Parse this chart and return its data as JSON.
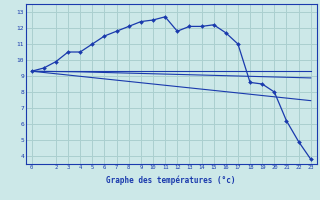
{
  "xlabel": "Graphe des températures (°c)",
  "bg_color": "#cce8e8",
  "line_color": "#1a3aad",
  "grid_color": "#aacfcf",
  "hours": [
    0,
    1,
    2,
    3,
    4,
    5,
    6,
    7,
    8,
    9,
    10,
    11,
    12,
    13,
    14,
    15,
    16,
    17,
    18,
    19,
    20,
    21,
    22,
    23
  ],
  "temp_curve": [
    9.3,
    9.5,
    9.9,
    10.5,
    10.5,
    11.0,
    11.5,
    11.8,
    12.1,
    12.4,
    12.5,
    12.7,
    11.8,
    12.1,
    12.1,
    12.2,
    11.7,
    11.0,
    8.6,
    8.5,
    8.0,
    6.2,
    4.9,
    3.8
  ],
  "temp_line_diag": [
    9.3,
    9.22,
    9.14,
    9.06,
    8.98,
    8.9,
    8.82,
    8.74,
    8.66,
    8.58,
    8.5,
    8.42,
    8.34,
    8.26,
    8.18,
    8.1,
    8.02,
    7.94,
    7.86,
    7.78,
    7.7,
    7.62,
    7.54,
    7.46
  ],
  "temp_line_flat1": [
    9.3,
    9.3,
    9.3,
    9.3,
    9.3,
    9.3,
    9.3,
    9.3,
    9.3,
    9.3,
    9.3,
    9.3,
    9.3,
    9.3,
    9.3,
    9.3,
    9.3,
    9.3,
    9.3,
    9.3,
    9.3,
    9.3,
    9.3,
    9.3
  ],
  "temp_line_flat2": [
    9.3,
    9.29,
    9.28,
    9.27,
    9.26,
    9.24,
    9.22,
    9.2,
    9.18,
    9.16,
    9.14,
    9.12,
    9.1,
    9.08,
    9.06,
    9.04,
    9.02,
    9.0,
    8.98,
    8.96,
    8.94,
    8.92,
    8.9,
    8.88
  ],
  "ylim": [
    3.5,
    13.5
  ],
  "yticks": [
    4,
    5,
    6,
    7,
    8,
    9,
    10,
    11,
    12,
    13
  ],
  "xlim": [
    -0.5,
    23.5
  ],
  "xticks": [
    0,
    2,
    3,
    4,
    5,
    6,
    7,
    8,
    9,
    10,
    11,
    12,
    13,
    14,
    15,
    16,
    17,
    18,
    19,
    20,
    21,
    22,
    23
  ]
}
